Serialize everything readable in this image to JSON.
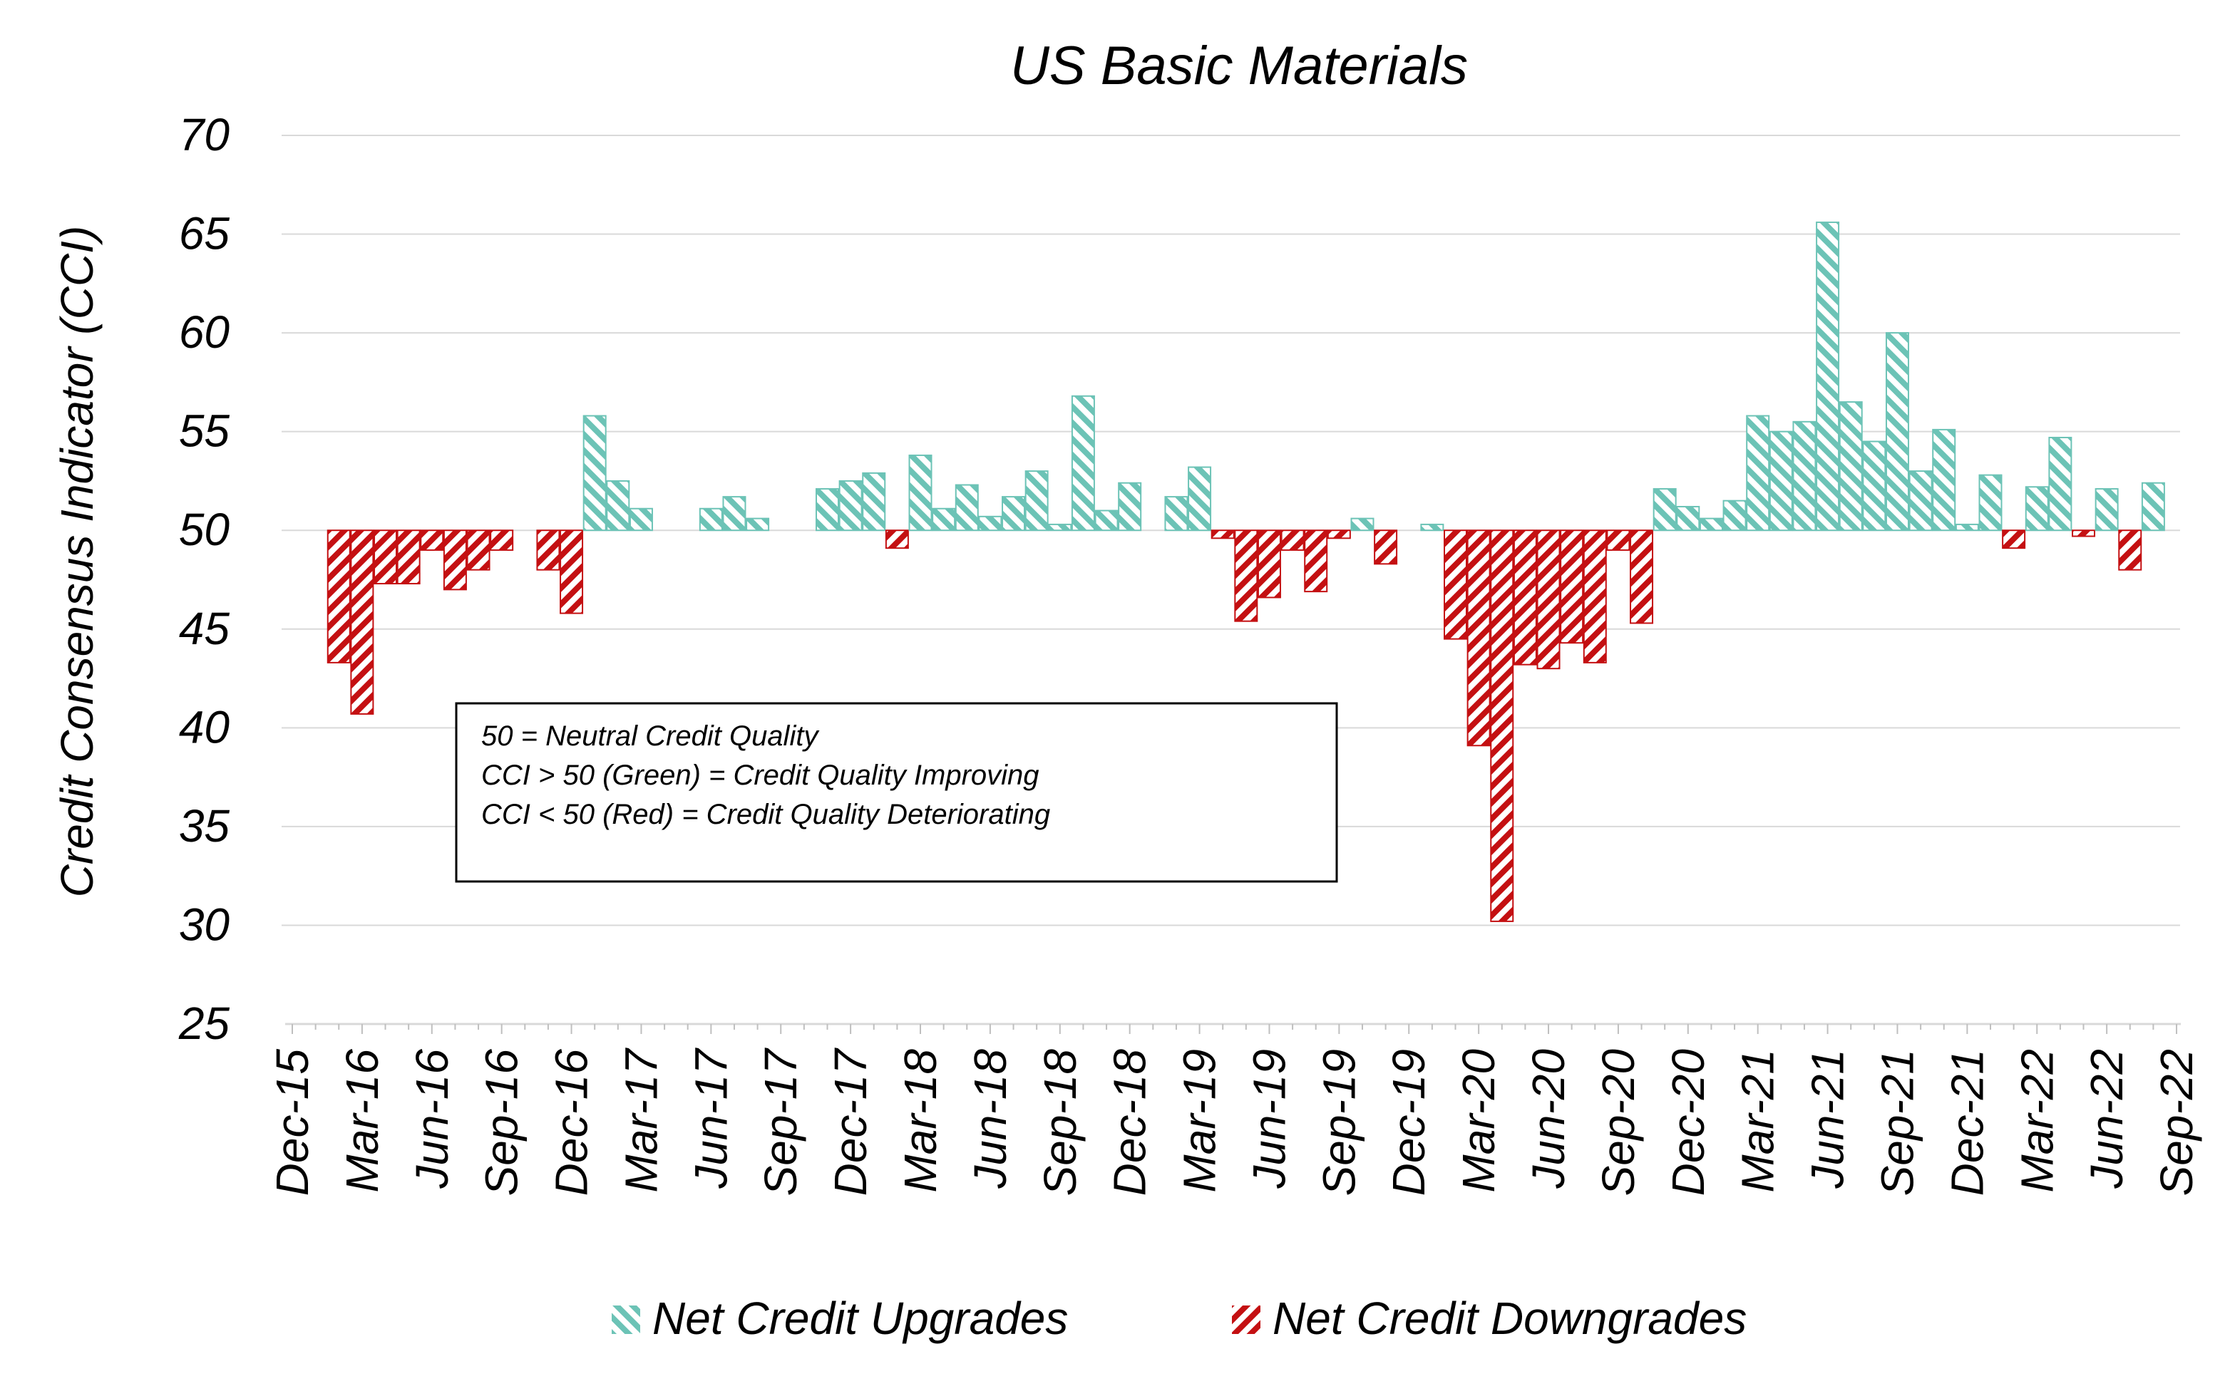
{
  "chart_data": {
    "type": "bar",
    "title": "US Basic Materials",
    "ylabel": "Credit Consensus Indicator (CCI)",
    "xlabel": "",
    "ylim": [
      25,
      70
    ],
    "yticks": [
      "25",
      "30",
      "35",
      "40",
      "45",
      "50",
      "55",
      "60",
      "65",
      "70"
    ],
    "xticks": [
      "Dec-15",
      "Mar-16",
      "Jun-16",
      "Sep-16",
      "Dec-16",
      "Mar-17",
      "Jun-17",
      "Sep-17",
      "Dec-17",
      "Mar-18",
      "Jun-18",
      "Sep-18",
      "Dec-18",
      "Mar-19",
      "Jun-19",
      "Sep-19",
      "Dec-19",
      "Mar-20",
      "Jun-20",
      "Sep-20",
      "Dec-20",
      "Mar-21",
      "Jun-21",
      "Sep-21",
      "Dec-21",
      "Mar-22",
      "Jun-22",
      "Sep-22"
    ],
    "baseline": 50,
    "grid": true,
    "legend_position": "bottom",
    "months": [
      "Jan-16",
      "Feb-16",
      "Mar-16",
      "Apr-16",
      "May-16",
      "Jun-16",
      "Jul-16",
      "Aug-16",
      "Sep-16",
      "Oct-16",
      "Nov-16",
      "Dec-16",
      "Jan-17",
      "Feb-17",
      "Mar-17",
      "Apr-17",
      "May-17",
      "Jun-17",
      "Jul-17",
      "Aug-17",
      "Sep-17",
      "Oct-17",
      "Nov-17",
      "Dec-17",
      "Jan-18",
      "Feb-18",
      "Mar-18",
      "Apr-18",
      "May-18",
      "Jun-18",
      "Jul-18",
      "Aug-18",
      "Sep-18",
      "Oct-18",
      "Nov-18",
      "Dec-18",
      "Jan-19",
      "Feb-19",
      "Mar-19",
      "Apr-19",
      "May-19",
      "Jun-19",
      "Jul-19",
      "Aug-19",
      "Sep-19",
      "Oct-19",
      "Nov-19",
      "Dec-19",
      "Jan-20",
      "Feb-20",
      "Mar-20",
      "Apr-20",
      "May-20",
      "Jun-20",
      "Jul-20",
      "Aug-20",
      "Sep-20",
      "Oct-20",
      "Nov-20",
      "Dec-20",
      "Jan-21",
      "Feb-21",
      "Mar-21",
      "Apr-21",
      "May-21",
      "Jun-21",
      "Jul-21",
      "Aug-21",
      "Sep-21",
      "Oct-21",
      "Nov-21",
      "Dec-21",
      "Jan-22",
      "Feb-22",
      "Mar-22",
      "Apr-22",
      "May-22",
      "Jun-22",
      "Jul-22",
      "Aug-22"
    ],
    "values": [
      50,
      43.3,
      40.7,
      47.3,
      47.3,
      49.0,
      47.0,
      48.0,
      49.0,
      50,
      48.0,
      45.8,
      55.8,
      52.5,
      51.1,
      50,
      50,
      51.1,
      51.7,
      50.6,
      50,
      50,
      52.1,
      52.5,
      52.9,
      49.1,
      53.8,
      51.1,
      52.3,
      50.7,
      51.7,
      53.0,
      50.3,
      56.8,
      51.0,
      52.4,
      50,
      51.7,
      53.2,
      49.6,
      45.4,
      46.6,
      49.0,
      46.9,
      49.6,
      50.6,
      48.3,
      50,
      50.3,
      44.5,
      39.1,
      30.2,
      43.2,
      43.0,
      44.3,
      43.3,
      49.0,
      45.3,
      52.1,
      51.2,
      50.6,
      51.5,
      55.8,
      55.0,
      55.5,
      65.6,
      56.5,
      54.5,
      60.0,
      53.0,
      55.1,
      50.3,
      52.8,
      49.1,
      52.2,
      54.7,
      49.7,
      52.1,
      48.0,
      52.4
    ],
    "series": [
      {
        "name": "Net Credit Upgrades",
        "rule": "value > 50",
        "color": "#6cc3b6"
      },
      {
        "name": "Net Credit Downgrades",
        "rule": "value < 50",
        "color": "#c41012"
      }
    ],
    "annotation": {
      "lines": [
        "50 = Neutral Credit Quality",
        "CCI > 50 (Green) = Credit Quality Improving",
        "CCI < 50 (Red) = Credit Quality Deteriorating"
      ]
    }
  }
}
